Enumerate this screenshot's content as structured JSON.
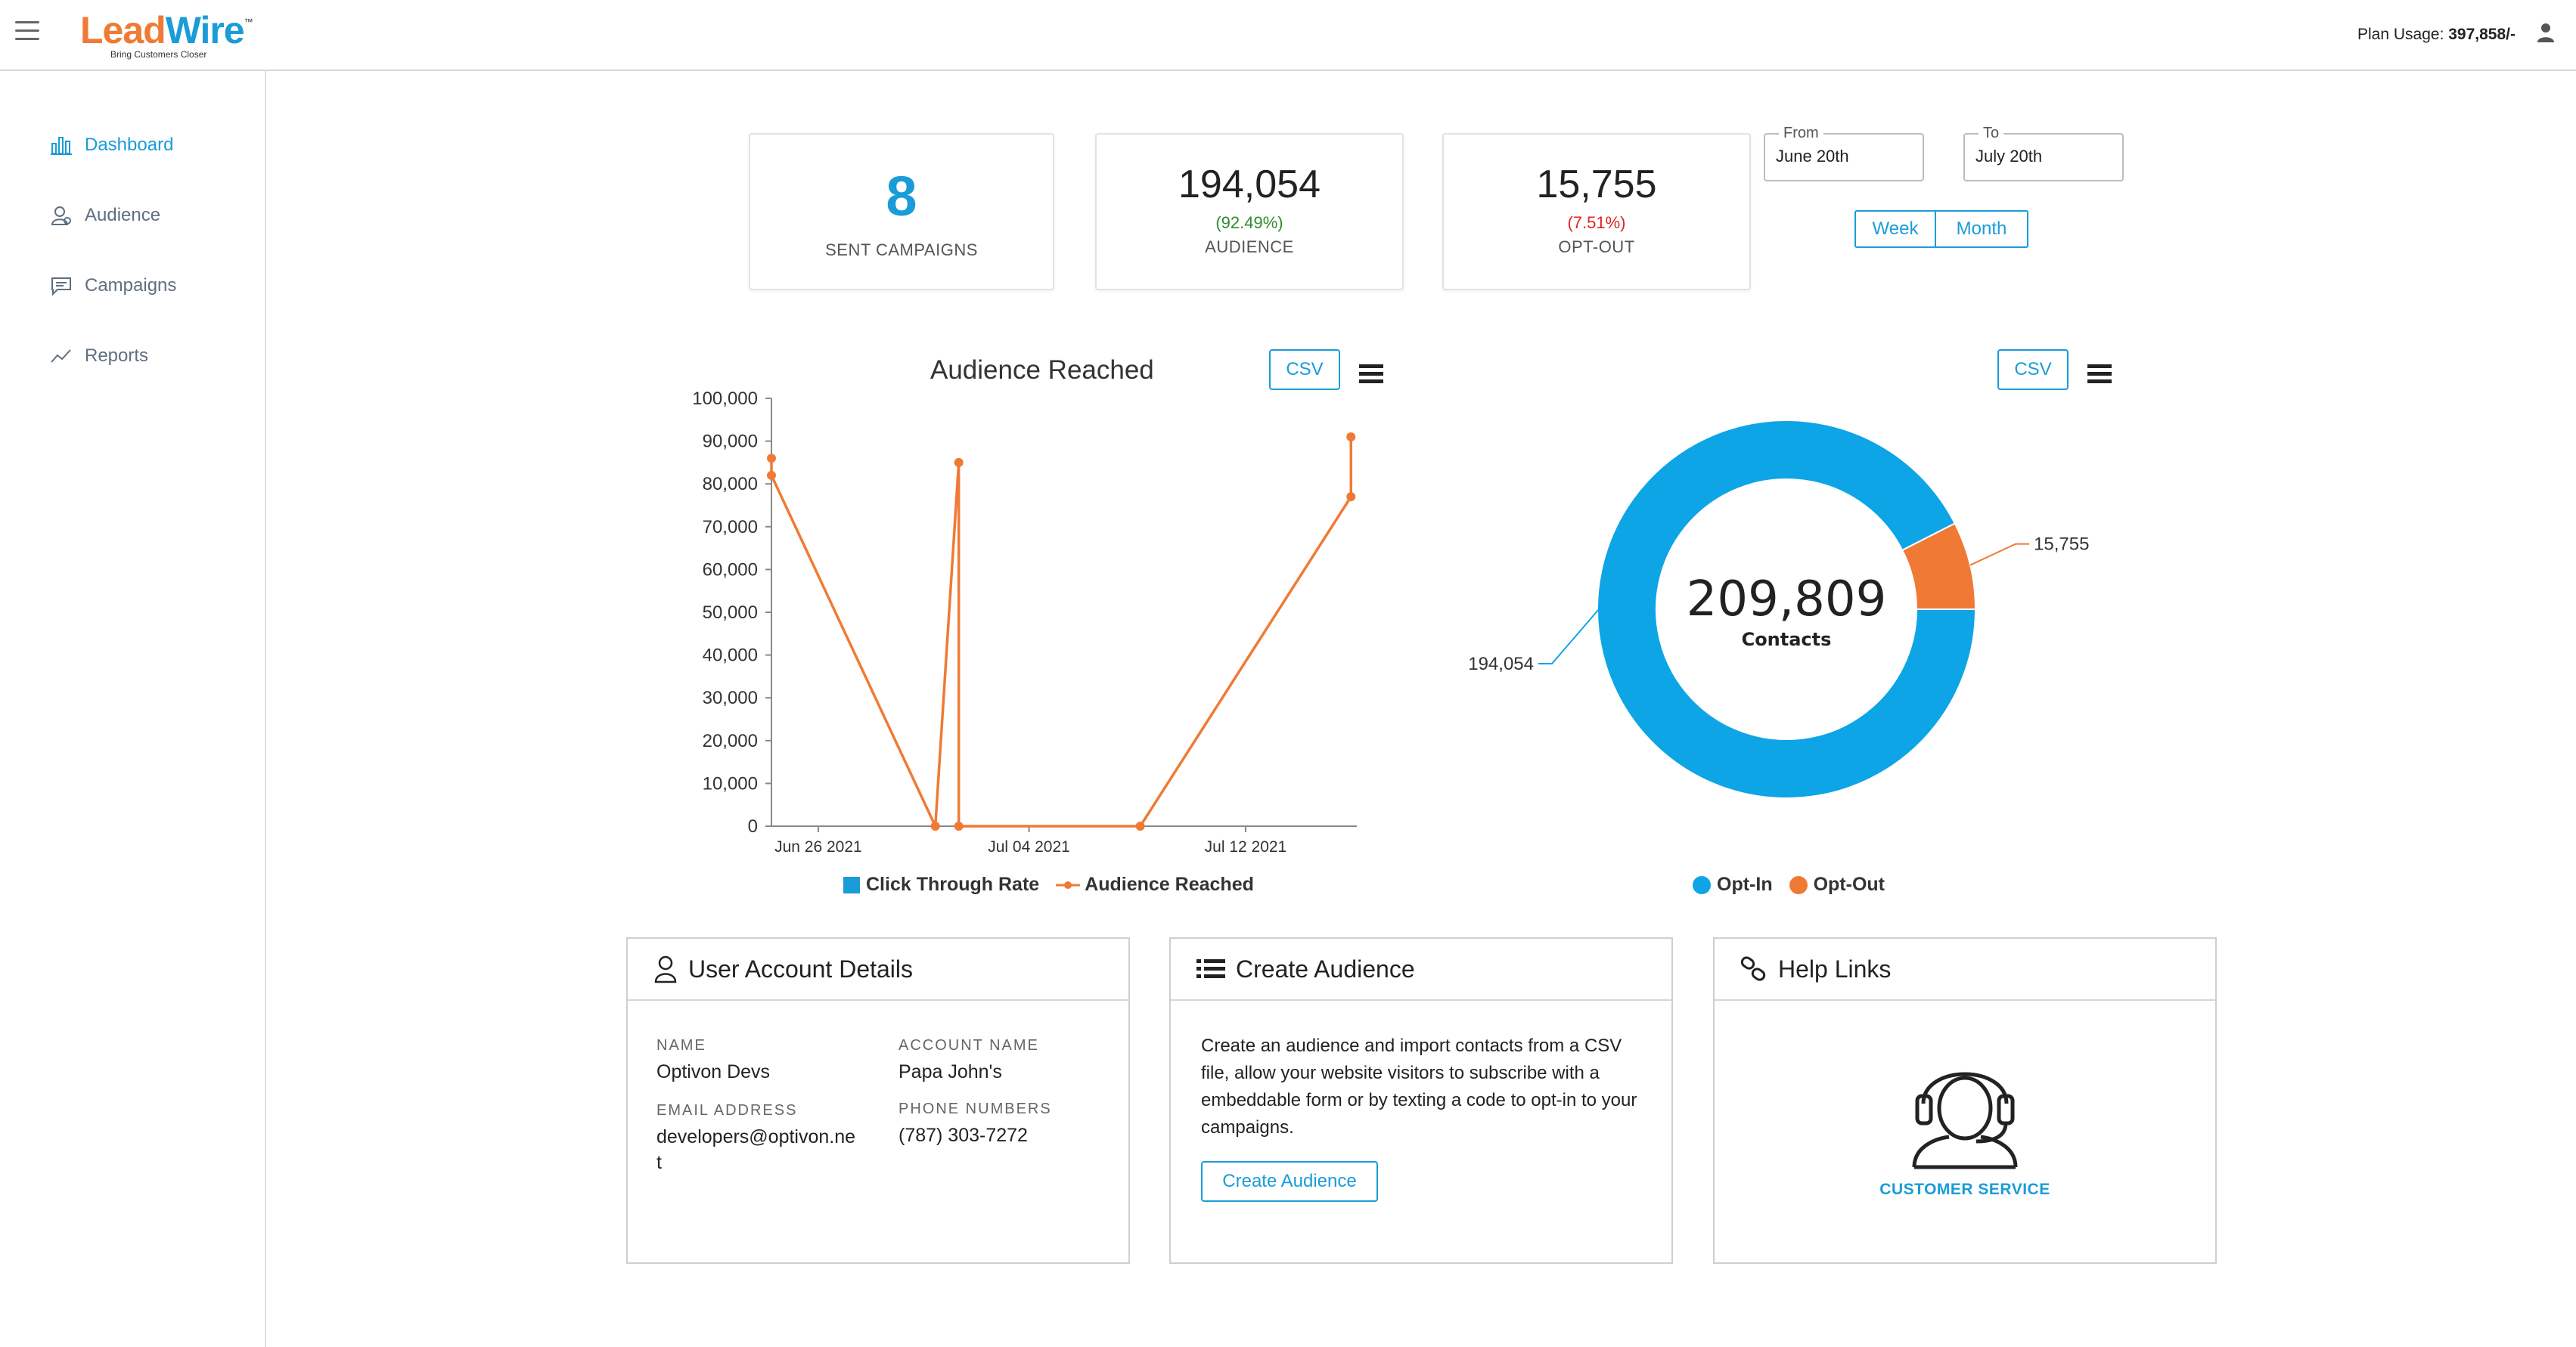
{
  "header": {
    "logo_lead": "Lead",
    "logo_wire": "Wire",
    "logo_tm": "™",
    "tagline": "Bring Customers Closer",
    "plan_usage_label": "Plan Usage:",
    "plan_usage_value": "397,858/-"
  },
  "sidebar": {
    "items": [
      {
        "label": "Dashboard",
        "icon": "bar-chart-icon"
      },
      {
        "label": "Audience",
        "icon": "audience-icon"
      },
      {
        "label": "Campaigns",
        "icon": "chat-icon"
      },
      {
        "label": "Reports",
        "icon": "trend-icon"
      }
    ]
  },
  "stats": {
    "sent_campaigns": {
      "value": "8",
      "label": "SENT CAMPAIGNS"
    },
    "audience": {
      "value": "194,054",
      "pct": "(92.49%)",
      "label": "AUDIENCE"
    },
    "optout": {
      "value": "15,755",
      "pct": "(7.51%)",
      "label": "OPT-OUT"
    }
  },
  "filters": {
    "from_label": "From",
    "from_value": "June 20th",
    "to_label": "To",
    "to_value": "July 20th",
    "week": "Week",
    "month": "Month"
  },
  "csv_label": "CSV",
  "colors": {
    "accent": "#1a9cd8",
    "orange": "#f07a35",
    "optin": "#0ea5e6"
  },
  "chart_data": [
    {
      "type": "line",
      "title": "Audience Reached",
      "ylim": [
        0,
        100000
      ],
      "yticks": [
        "100,000",
        "90,000",
        "80,000",
        "70,000",
        "60,000",
        "50,000",
        "40,000",
        "30,000",
        "20,000",
        "10,000",
        "0"
      ],
      "xticks": [
        "Jun 26 2021",
        "Jul 04 2021",
        "Jul 12 2021"
      ],
      "legend": [
        "Click Through Rate",
        "Audience Reached"
      ],
      "series": [
        {
          "name": "Click Through Rate",
          "values": []
        },
        {
          "name": "Audience Reached",
          "x": [
            0,
            0,
            0.28,
            0.32,
            0.32,
            0.63,
            0.99,
            0.99
          ],
          "values": [
            86000,
            82000,
            0,
            85000,
            0,
            0,
            77000,
            91000
          ]
        }
      ]
    },
    {
      "type": "pie",
      "center_value": "209,809",
      "center_label": "Contacts",
      "legend": [
        "Opt-In",
        "Opt-Out"
      ],
      "slices": [
        {
          "name": "Opt-In",
          "value": 194054,
          "label": "194,054"
        },
        {
          "name": "Opt-Out",
          "value": 15755,
          "label": "15,755"
        }
      ]
    }
  ],
  "user_account": {
    "title": "User Account Details",
    "name_label": "Name",
    "name_value": "Optivon Devs",
    "account_label": "Account Name",
    "account_value": "Papa John's",
    "email_label": "Email Address",
    "email_value": "developers@optivon.ne t",
    "phone_label": "Phone Numbers",
    "phone_value": "(787) 303-7272"
  },
  "create_audience": {
    "title": "Create Audience",
    "description": "Create an audience and import contacts from a CSV file, allow your website visitors to subscribe with a embeddable form or by texting a code to opt-in to your campaigns.",
    "button": "Create Audience"
  },
  "help_links": {
    "title": "Help Links",
    "customer_service": "CUSTOMER SERVICE"
  }
}
